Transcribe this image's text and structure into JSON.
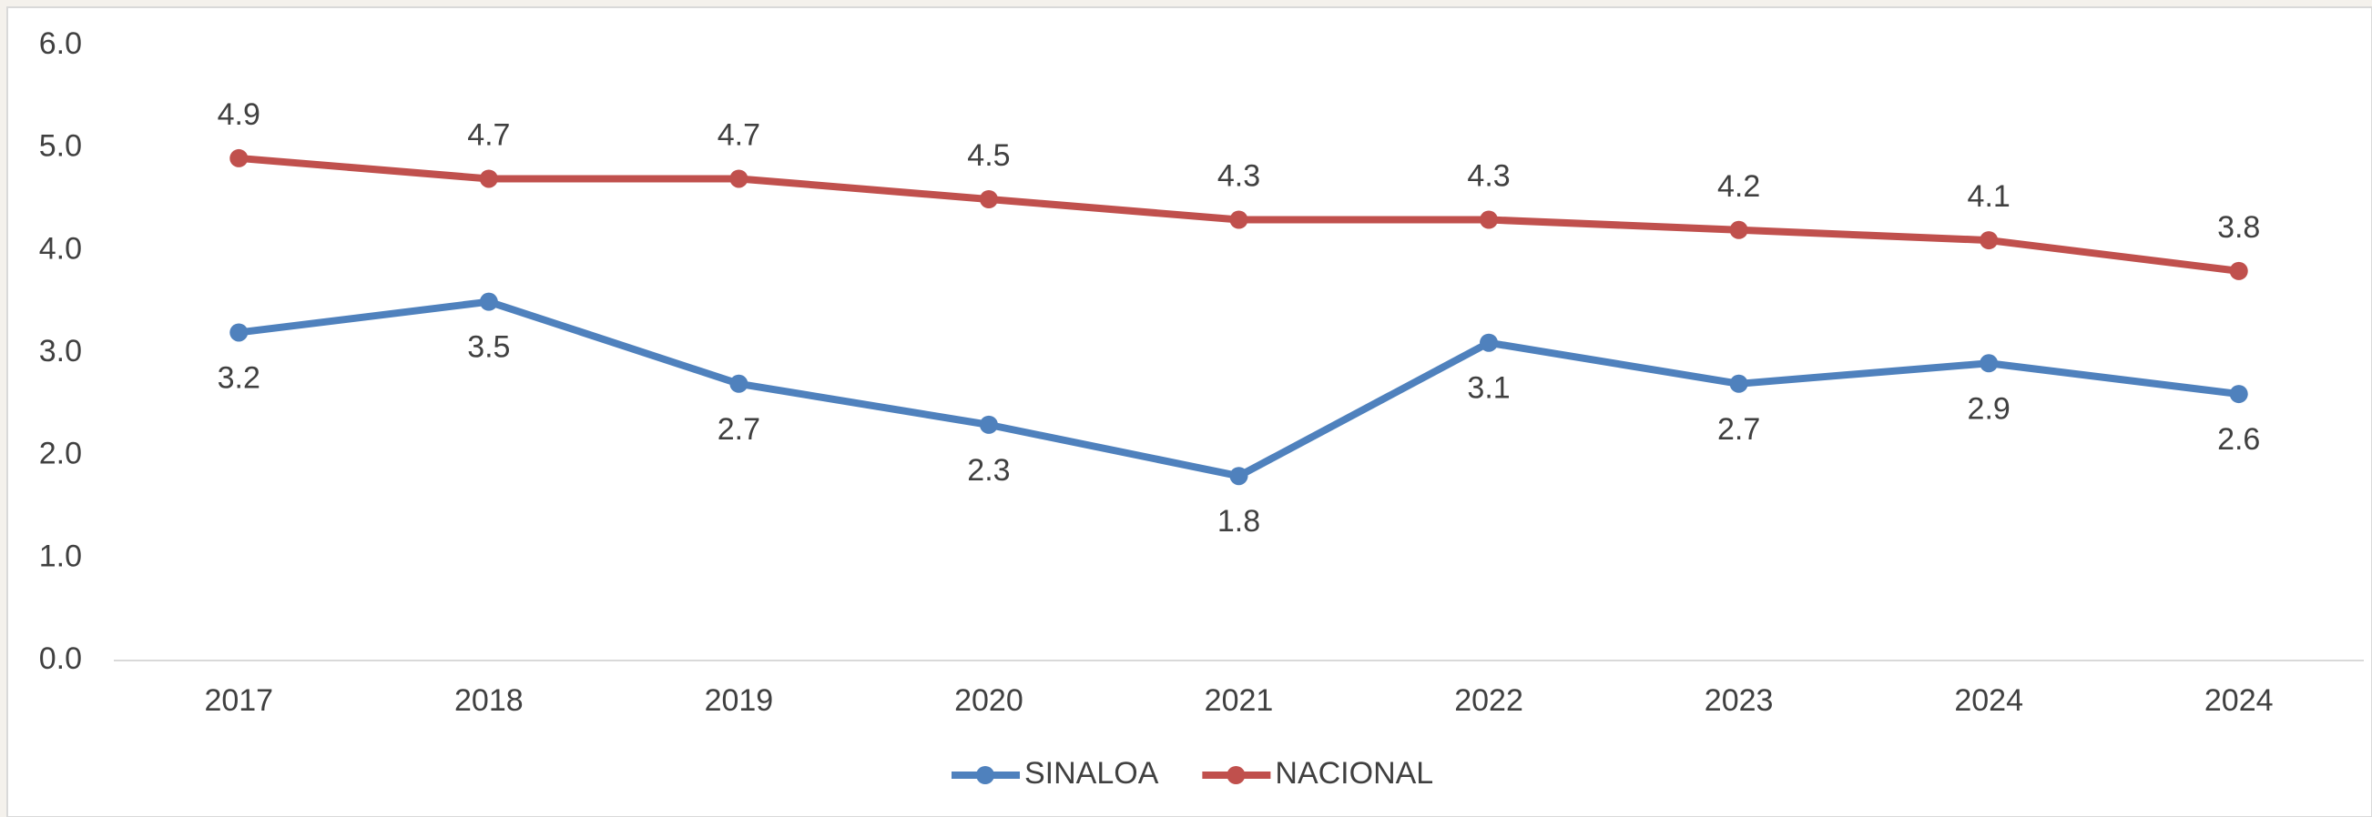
{
  "chart_data": {
    "type": "line",
    "categories": [
      "2017",
      "2018",
      "2019",
      "2020",
      "2021",
      "2022",
      "2023",
      "2024",
      "2024"
    ],
    "series": [
      {
        "name": "SINALOA",
        "color": "#4f81bd",
        "values": [
          3.2,
          3.5,
          2.7,
          2.3,
          1.8,
          3.1,
          2.7,
          2.9,
          2.6
        ]
      },
      {
        "name": "NACIONAL",
        "color": "#c0504d",
        "values": [
          4.9,
          4.7,
          4.7,
          4.5,
          4.3,
          4.3,
          4.2,
          4.1,
          3.8
        ]
      }
    ],
    "ylim": [
      0,
      6
    ],
    "yticks": [
      {
        "value": 0,
        "label": "0.0"
      },
      {
        "value": 1,
        "label": "1.0"
      },
      {
        "value": 2,
        "label": "2.0"
      },
      {
        "value": 3,
        "label": "3.0"
      },
      {
        "value": 4,
        "label": "4.0"
      },
      {
        "value": 5,
        "label": "5.0"
      },
      {
        "value": 6,
        "label": "6.0"
      }
    ],
    "grid": false,
    "legend": "bottom"
  }
}
